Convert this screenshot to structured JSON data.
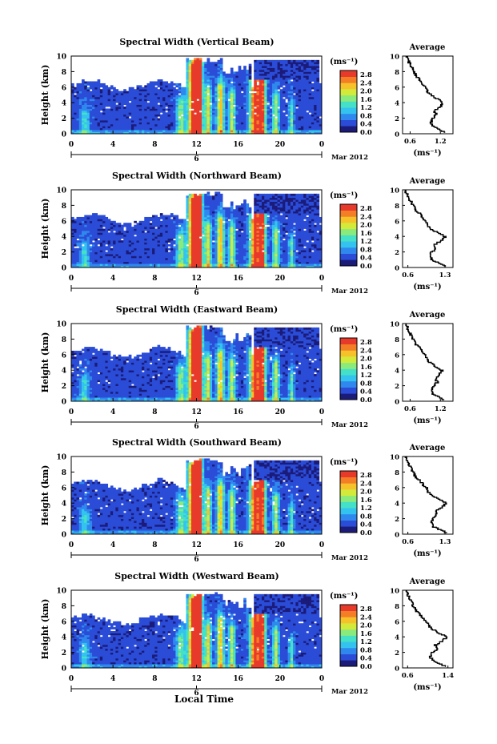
{
  "common": {
    "ylabel": "Height (km)",
    "xlabel": "Local Time",
    "colorbar_unit": "(ms⁻¹)",
    "colorbar_ticks": [
      "2.8",
      "2.4",
      "2.0",
      "1.6",
      "1.2",
      "0.8",
      "0.4",
      "0.0"
    ],
    "x_ticks": [
      "0",
      "4",
      "8",
      "12",
      "16",
      "20",
      "0"
    ],
    "y_ticks": [
      "10",
      "8",
      "6",
      "4",
      "2",
      "0"
    ],
    "date_tick": "6",
    "month_label": "Mar 2012",
    "avg_title": "Average",
    "avg_xlabel": "(ms⁻¹)",
    "colormap": [
      "#1b1b7a",
      "#2a4cd6",
      "#2f88ee",
      "#34c3ee",
      "#45e0c8",
      "#8aeb7c",
      "#d4ea3a",
      "#f5c22a",
      "#f47e26",
      "#e83a2a"
    ]
  },
  "chart_data": [
    {
      "type": "heatmap",
      "title": "Spectral Width (Vertical Beam)",
      "xlim": [
        0,
        24
      ],
      "ylim": [
        0,
        10
      ],
      "clim": [
        0.0,
        3.0
      ],
      "avg_xticks": [
        "0.6",
        "1.2"
      ],
      "avg_xlim": [
        0.45,
        1.45
      ],
      "avg_profile": [
        [
          1.3,
          0.2
        ],
        [
          1.18,
          0.6
        ],
        [
          1.05,
          1.0
        ],
        [
          1.02,
          1.5
        ],
        [
          1.04,
          2.0
        ],
        [
          1.12,
          2.5
        ],
        [
          1.08,
          3.0
        ],
        [
          1.2,
          3.5
        ],
        [
          1.25,
          4.0
        ],
        [
          1.15,
          4.5
        ],
        [
          1.02,
          5.0
        ],
        [
          0.95,
          5.5
        ],
        [
          0.92,
          6.0
        ],
        [
          0.85,
          6.5
        ],
        [
          0.8,
          7.0
        ],
        [
          0.72,
          7.5
        ],
        [
          0.68,
          8.0
        ],
        [
          0.64,
          8.5
        ],
        [
          0.6,
          9.0
        ],
        [
          0.56,
          9.5
        ],
        [
          0.52,
          10.0
        ]
      ]
    },
    {
      "type": "heatmap",
      "title": "Spectral Width (Northward Beam)",
      "xlim": [
        0,
        24
      ],
      "ylim": [
        0,
        10
      ],
      "clim": [
        0.0,
        3.0
      ],
      "avg_xticks": [
        "0.6",
        "1.3"
      ],
      "avg_xlim": [
        0.5,
        1.45
      ],
      "avg_profile": [
        [
          1.32,
          0.2
        ],
        [
          1.2,
          0.6
        ],
        [
          1.06,
          1.0
        ],
        [
          1.03,
          1.5
        ],
        [
          1.05,
          2.0
        ],
        [
          1.12,
          2.5
        ],
        [
          1.1,
          3.0
        ],
        [
          1.22,
          3.5
        ],
        [
          1.3,
          4.0
        ],
        [
          1.18,
          4.5
        ],
        [
          1.04,
          5.0
        ],
        [
          0.96,
          5.5
        ],
        [
          0.94,
          6.0
        ],
        [
          0.86,
          6.5
        ],
        [
          0.82,
          7.0
        ],
        [
          0.74,
          7.5
        ],
        [
          0.7,
          8.0
        ],
        [
          0.66,
          8.5
        ],
        [
          0.62,
          9.0
        ],
        [
          0.58,
          9.5
        ],
        [
          0.55,
          10.0
        ]
      ]
    },
    {
      "type": "heatmap",
      "title": "Spectral Width (Eastward Beam)",
      "xlim": [
        0,
        24
      ],
      "ylim": [
        0,
        10
      ],
      "clim": [
        0.0,
        3.0
      ],
      "avg_xticks": [
        "0.6",
        "1.2"
      ],
      "avg_xlim": [
        0.45,
        1.45
      ],
      "avg_profile": [
        [
          1.28,
          0.2
        ],
        [
          1.16,
          0.6
        ],
        [
          1.04,
          1.0
        ],
        [
          1.02,
          1.5
        ],
        [
          1.06,
          2.0
        ],
        [
          1.14,
          2.5
        ],
        [
          1.1,
          3.0
        ],
        [
          1.18,
          3.5
        ],
        [
          1.24,
          4.0
        ],
        [
          1.12,
          4.5
        ],
        [
          1.0,
          5.0
        ],
        [
          0.94,
          5.5
        ],
        [
          0.9,
          6.0
        ],
        [
          0.84,
          6.5
        ],
        [
          0.78,
          7.0
        ],
        [
          0.7,
          7.5
        ],
        [
          0.66,
          8.0
        ],
        [
          0.62,
          8.5
        ],
        [
          0.58,
          9.0
        ],
        [
          0.55,
          9.5
        ],
        [
          0.52,
          10.0
        ]
      ]
    },
    {
      "type": "heatmap",
      "title": "Spectral Width (Southward Beam)",
      "xlim": [
        0,
        24
      ],
      "ylim": [
        0,
        10
      ],
      "clim": [
        0.0,
        3.0
      ],
      "avg_xticks": [
        "0.6",
        "1.3"
      ],
      "avg_xlim": [
        0.5,
        1.45
      ],
      "avg_profile": [
        [
          1.34,
          0.2
        ],
        [
          1.22,
          0.6
        ],
        [
          1.08,
          1.0
        ],
        [
          1.04,
          1.5
        ],
        [
          1.06,
          2.0
        ],
        [
          1.14,
          2.5
        ],
        [
          1.12,
          3.0
        ],
        [
          1.24,
          3.5
        ],
        [
          1.32,
          4.0
        ],
        [
          1.2,
          4.5
        ],
        [
          1.06,
          5.0
        ],
        [
          0.98,
          5.5
        ],
        [
          0.95,
          6.0
        ],
        [
          0.88,
          6.5
        ],
        [
          0.82,
          7.0
        ],
        [
          0.74,
          7.5
        ],
        [
          0.7,
          8.0
        ],
        [
          0.66,
          8.5
        ],
        [
          0.62,
          9.0
        ],
        [
          0.58,
          9.5
        ],
        [
          0.55,
          10.0
        ]
      ]
    },
    {
      "type": "heatmap",
      "title": "Spectral Width (Westward Beam)",
      "xlim": [
        0,
        24
      ],
      "ylim": [
        0,
        10
      ],
      "clim": [
        0.0,
        3.0
      ],
      "avg_xticks": [
        "0.6",
        "1.4"
      ],
      "avg_xlim": [
        0.5,
        1.5
      ],
      "avg_profile": [
        [
          1.36,
          0.2
        ],
        [
          1.24,
          0.6
        ],
        [
          1.1,
          1.0
        ],
        [
          1.05,
          1.5
        ],
        [
          1.08,
          2.0
        ],
        [
          1.18,
          2.5
        ],
        [
          1.14,
          3.0
        ],
        [
          1.28,
          3.5
        ],
        [
          1.38,
          4.0
        ],
        [
          1.24,
          4.5
        ],
        [
          1.1,
          5.0
        ],
        [
          1.02,
          5.5
        ],
        [
          0.98,
          6.0
        ],
        [
          0.9,
          6.5
        ],
        [
          0.84,
          7.0
        ],
        [
          0.76,
          7.5
        ],
        [
          0.72,
          8.0
        ],
        [
          0.68,
          8.5
        ],
        [
          0.64,
          9.0
        ],
        [
          0.6,
          9.5
        ],
        [
          0.57,
          10.0
        ]
      ]
    }
  ]
}
